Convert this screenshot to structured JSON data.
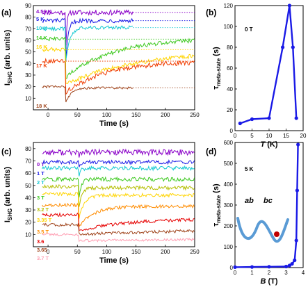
{
  "chart_data": [
    {
      "panel": "(a)",
      "type": "line",
      "xlabel": "Time (s)",
      "ylabel": "I_SHG (arb. units)",
      "xlim": [
        -25,
        250
      ],
      "ylim": [
        0,
        90
      ],
      "xticks": [
        0,
        50,
        100,
        150,
        200,
        250
      ],
      "yticks": [
        10,
        20,
        30,
        40,
        50,
        60,
        70,
        80,
        90
      ],
      "series": [
        {
          "name": "4.56 K",
          "color": "#8a00c8",
          "baseline": 84,
          "dip": 50,
          "tau": 2,
          "end": 145,
          "final": 84,
          "noise": 2.2
        },
        {
          "name": "5 K",
          "color": "#1a1ae6",
          "baseline": 77,
          "dip": 38,
          "tau": 4,
          "end": 145,
          "final": 77,
          "noise": 1.8
        },
        {
          "name": "10 K",
          "color": "#12c8d2",
          "baseline": 70,
          "dip": 40,
          "tau": 7,
          "end": 145,
          "final": 71,
          "noise": 1.6
        },
        {
          "name": "14 K",
          "color": "#3cc81e",
          "baseline": 61,
          "dip": 28,
          "tau": 80,
          "end": 250,
          "final": 62,
          "noise": 1.8
        },
        {
          "name": "16 K",
          "color": "#ffd400",
          "baseline": 52,
          "dip": 22,
          "tau": 120,
          "end": 250,
          "final": 51,
          "noise": 1.8
        },
        {
          "name": "17 K",
          "color": "#f03c00",
          "baseline": 42,
          "dip": 15,
          "tau": 70,
          "end": 250,
          "final": 42,
          "noise": 2.0
        },
        {
          "name": "18 K",
          "color": "#a0461e",
          "baseline": 20,
          "dip": 6,
          "tau": 10,
          "end": 145,
          "final": 19,
          "noise": 1.0
        }
      ],
      "t_switch": 30
    },
    {
      "panel": "(b)",
      "type": "line",
      "annotation": "0 T",
      "xlabel": "T (K)",
      "ylabel": "τ_meta-state (s)",
      "xlim": [
        0,
        20
      ],
      "ylim": [
        0,
        120
      ],
      "xticks": [
        0,
        5,
        10,
        15,
        20
      ],
      "yticks": [
        0,
        20,
        40,
        60,
        80,
        100,
        120
      ],
      "x": [
        1.5,
        5,
        10,
        14,
        16,
        17,
        18
      ],
      "y": [
        7,
        11,
        12,
        80,
        120,
        80,
        12
      ],
      "color": "#1a1ae6"
    },
    {
      "panel": "(c)",
      "type": "line",
      "xlabel": "Time (s)",
      "ylabel": "I_SHG (arb. units)",
      "xlim": [
        -25,
        250
      ],
      "ylim": [
        0,
        85
      ],
      "xticks": [
        0,
        50,
        100,
        150,
        200,
        250
      ],
      "yticks": [
        10,
        20,
        30,
        40,
        50,
        60,
        70,
        80
      ],
      "series": [
        {
          "name": "0 T",
          "color": "#8a00c8",
          "baseline": 77,
          "dip": 63,
          "tau": 1,
          "final": 77,
          "noise": 2.4
        },
        {
          "name": "1 T",
          "color": "#1a1ae6",
          "baseline": 69,
          "dip": 60,
          "tau": 2,
          "final": 69,
          "noise": 1.5
        },
        {
          "name": "2 T",
          "color": "#12c8d2",
          "baseline": 64,
          "dip": 56,
          "tau": 3,
          "final": 64,
          "noise": 1.6
        },
        {
          "name": "3 T",
          "color": "#3cc81e",
          "baseline": 55,
          "dip": 36,
          "tau": 4,
          "final": 55,
          "noise": 1.6
        },
        {
          "name": "3.2 T",
          "color": "#b4be00",
          "baseline": 49,
          "dip": 28,
          "tau": 5,
          "final": 48,
          "noise": 1.5
        },
        {
          "name": "3.35 T",
          "color": "#ffd400",
          "baseline": 43,
          "dip": 22,
          "tau": 9,
          "final": 42,
          "noise": 1.4
        },
        {
          "name": "3.5 T",
          "color": "#ff8c00",
          "baseline": 34,
          "dip": 16,
          "tau": 25,
          "final": 33,
          "noise": 1.3
        },
        {
          "name": "3.6",
          "color": "#e60000",
          "baseline": 26,
          "dip": 13,
          "tau": 80,
          "final": 23,
          "noise": 1.3
        },
        {
          "name": "3.65",
          "color": "#a0461e",
          "baseline": 18,
          "dip": 10,
          "tau": 300,
          "final": 16,
          "noise": 1.2
        },
        {
          "name": "3.7 T",
          "color": "#ffa0b4",
          "baseline": 10,
          "dip": 5,
          "tau": 800,
          "final": 9,
          "noise": 1.0
        }
      ],
      "t_switch": 52
    },
    {
      "panel": "(d)",
      "type": "line",
      "annotation": "5 K",
      "xlabel": "B (T)",
      "ylabel": "τ_meta-state (s)",
      "xlim": [
        0,
        4
      ],
      "ylim": [
        0,
        600
      ],
      "xticks": [
        0,
        1,
        2,
        3,
        4
      ],
      "yticks": [
        0,
        100,
        200,
        300,
        400,
        500,
        600
      ],
      "x": [
        0,
        1,
        2,
        3,
        3.2,
        3.35,
        3.5,
        3.6,
        3.65,
        3.7
      ],
      "y": [
        2,
        3,
        4,
        5,
        10,
        18,
        35,
        130,
        370,
        590
      ],
      "color": "#1a1ae6",
      "inset_labels": [
        "ab",
        "bc"
      ]
    }
  ]
}
